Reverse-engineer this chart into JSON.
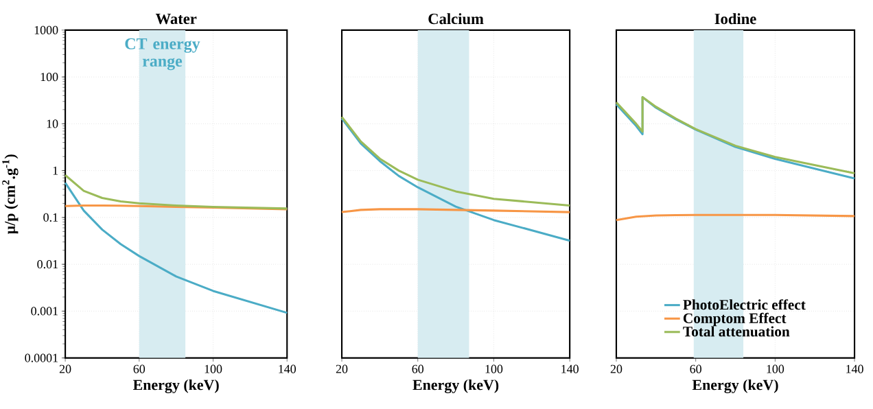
{
  "chart_data": [
    {
      "type": "line",
      "title": "Water",
      "xlabel": "Energy (keV)",
      "ylabel": "μ/p (cm$^{2}$.g$^{-1}$)",
      "log": true,
      "grid": true,
      "xlim": [
        20,
        140
      ],
      "xticks": [
        20,
        60,
        100,
        140
      ],
      "ylim": [
        0.0001,
        1000
      ],
      "yticks": [
        0.0001,
        0.001,
        0.01,
        0.1,
        1,
        10,
        100,
        1000
      ],
      "bands": [
        {
          "axis": "x",
          "from": 60,
          "to": 85,
          "label": "CT energy range",
          "color": "#d7ecf1"
        }
      ],
      "series": [
        {
          "color": "#4bacc6",
          "x": [
            20,
            30,
            40,
            50,
            60,
            80,
            100,
            140
          ],
          "values": [
            0.55,
            0.14,
            0.055,
            0.027,
            0.015,
            0.0055,
            0.0027,
            0.00092
          ]
        },
        {
          "color": "#f79646",
          "x": [
            20,
            30,
            40,
            50,
            60,
            80,
            100,
            140
          ],
          "values": [
            0.175,
            0.18,
            0.18,
            0.178,
            0.175,
            0.168,
            0.162,
            0.15
          ]
        },
        {
          "color": "#9bbb59",
          "x": [
            20,
            30,
            40,
            50,
            60,
            80,
            100,
            140
          ],
          "values": [
            0.8,
            0.37,
            0.26,
            0.22,
            0.2,
            0.18,
            0.168,
            0.155
          ]
        }
      ]
    },
    {
      "type": "line",
      "title": "Calcium",
      "xlabel": "Energy (keV)",
      "log": true,
      "grid": true,
      "tick_labels": "x",
      "xlim": [
        20,
        140
      ],
      "xticks": [
        20,
        60,
        100,
        140
      ],
      "ylim": [
        0.0001,
        1000
      ],
      "yticks": [
        0.0001,
        0.001,
        0.01,
        0.1,
        1,
        10,
        100,
        1000
      ],
      "bands": [
        {
          "axis": "x",
          "from": 60,
          "to": 87,
          "color": "#d7ecf1"
        }
      ],
      "series": [
        {
          "color": "#4bacc6",
          "x": [
            20,
            30,
            40,
            50,
            60,
            80,
            100,
            140
          ],
          "values": [
            13,
            3.8,
            1.6,
            0.77,
            0.44,
            0.17,
            0.088,
            0.032
          ]
        },
        {
          "color": "#f79646",
          "x": [
            20,
            30,
            40,
            50,
            60,
            80,
            100,
            140
          ],
          "values": [
            0.13,
            0.145,
            0.15,
            0.15,
            0.15,
            0.145,
            0.14,
            0.13
          ]
        },
        {
          "color": "#9bbb59",
          "x": [
            20,
            30,
            40,
            50,
            60,
            80,
            100,
            140
          ],
          "values": [
            14,
            4.2,
            1.8,
            1.0,
            0.64,
            0.36,
            0.25,
            0.18
          ]
        }
      ]
    },
    {
      "type": "line",
      "title": "Iodine",
      "xlabel": "Energy (keV)",
      "log": true,
      "grid": true,
      "tick_labels": "x",
      "legend": "bottom",
      "xlim": [
        20,
        140
      ],
      "xticks": [
        20,
        60,
        100,
        140
      ],
      "ylim": [
        0.0001,
        1000
      ],
      "yticks": [
        0.0001,
        0.001,
        0.01,
        0.1,
        1,
        10,
        100,
        1000
      ],
      "bands": [
        {
          "axis": "x",
          "from": 59,
          "to": 84,
          "color": "#d7ecf1"
        }
      ],
      "series": [
        {
          "name": "PhotoElectric effect",
          "color": "#4bacc6",
          "x": [
            20,
            30,
            33.2,
            33.2,
            40,
            50,
            60,
            80,
            100,
            140
          ],
          "values": [
            26,
            9,
            6,
            37,
            22,
            12.4,
            7.5,
            3.2,
            1.78,
            0.68
          ]
        },
        {
          "name": "Comptom Effect",
          "color": "#f79646",
          "x": [
            20,
            30,
            40,
            50,
            60,
            80,
            100,
            140
          ],
          "values": [
            0.088,
            0.104,
            0.11,
            0.112,
            0.113,
            0.113,
            0.113,
            0.107
          ]
        },
        {
          "name": "Total attenuation",
          "color": "#9bbb59",
          "x": [
            20,
            30,
            33.2,
            33.2,
            40,
            50,
            60,
            80,
            100,
            140
          ],
          "values": [
            28.7,
            10,
            6.8,
            37,
            23,
            12.9,
            7.7,
            3.4,
            1.95,
            0.88
          ]
        }
      ]
    }
  ]
}
